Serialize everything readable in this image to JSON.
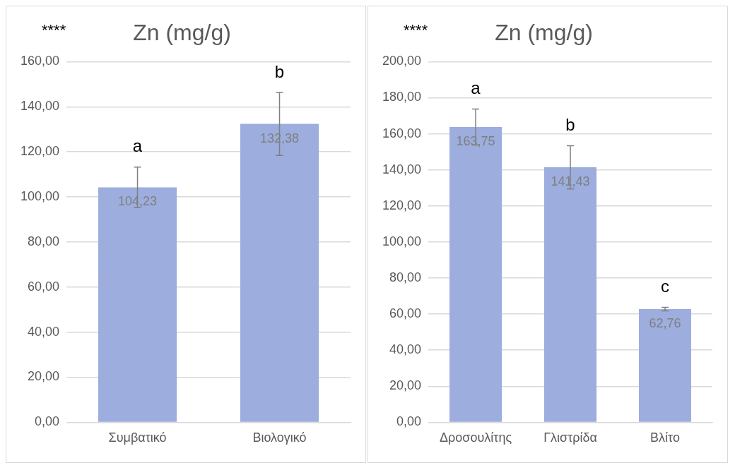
{
  "chart_data": [
    {
      "type": "bar",
      "title": "Zn (mg/g)",
      "categories": [
        "Συμβατικό",
        "Βιολογικό"
      ],
      "values": [
        104.23,
        132.38
      ],
      "errors": [
        9,
        14
      ],
      "value_labels": [
        "104,23",
        "132,38"
      ],
      "color": "#9cadde",
      "ylim": [
        0,
        160
      ],
      "yticks": [
        {
          "value": 0,
          "label": "0,00"
        },
        {
          "value": 20,
          "label": "20,00"
        },
        {
          "value": 40,
          "label": "40,00"
        },
        {
          "value": 60,
          "label": "60,00"
        },
        {
          "value": 80,
          "label": "80,00"
        },
        {
          "value": 100,
          "label": "100,00"
        },
        {
          "value": 120,
          "label": "120,00"
        },
        {
          "value": 140,
          "label": "140,00"
        },
        {
          "value": 160,
          "label": "160,00"
        }
      ],
      "grid": "y",
      "annotations": [
        "****",
        "a",
        "b"
      ]
    },
    {
      "type": "bar",
      "title": "Zn (mg/g)",
      "categories": [
        "Δροσουλίτης",
        "Γλιστρίδα",
        "Βλίτο"
      ],
      "values": [
        163.75,
        141.43,
        62.76
      ],
      "errors": [
        10,
        12,
        1
      ],
      "value_labels": [
        "163,75",
        "141,43",
        "62,76"
      ],
      "color": "#9cadde",
      "ylim": [
        0,
        200
      ],
      "yticks": [
        {
          "value": 0,
          "label": "0,00"
        },
        {
          "value": 20,
          "label": "20,00"
        },
        {
          "value": 40,
          "label": "40,00"
        },
        {
          "value": 60,
          "label": "60,00"
        },
        {
          "value": 80,
          "label": "80,00"
        },
        {
          "value": 100,
          "label": "100,00"
        },
        {
          "value": 120,
          "label": "120,00"
        },
        {
          "value": 140,
          "label": "140,00"
        },
        {
          "value": 160,
          "label": "160,00"
        },
        {
          "value": 180,
          "label": "180,00"
        },
        {
          "value": 200,
          "label": "200,00"
        }
      ],
      "grid": "y",
      "annotations": [
        "****",
        "a",
        "b",
        "c"
      ]
    }
  ]
}
